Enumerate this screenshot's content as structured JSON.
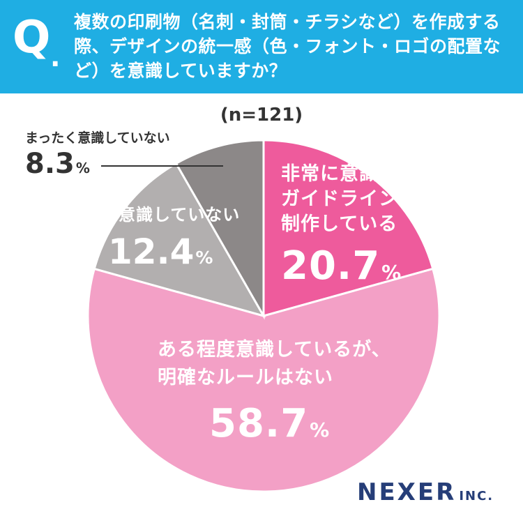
{
  "header": {
    "q_mark": "Q",
    "q_dot": ".",
    "question": "複数の印刷物（名刺・封筒・チラシなど）を作成する際、デザインの統一感（色・フォント・ロゴの配置など）を意識していますか？",
    "background": "#1faee3"
  },
  "sample_size": "(n=121)",
  "chart_data": {
    "type": "pie",
    "start_angle_deg": 0,
    "direction": "clockwise",
    "slices": [
      {
        "label": "非常に意識しており、ガイドラインに沿って制作している",
        "value": 20.7,
        "value_text": "20.7",
        "color": "#ee5b9c"
      },
      {
        "label": "ある程度意識しているが、明確なルールはない",
        "value": 58.7,
        "value_text": "58.7",
        "color": "#f3a0c6"
      },
      {
        "label": "あまり意識していない",
        "value": 12.4,
        "value_text": "12.4",
        "color": "#b2afaf"
      },
      {
        "label": "まったく意識していない",
        "value": 8.3,
        "value_text": "8.3",
        "color": "#8c8888"
      }
    ],
    "percent_sign": "%"
  },
  "labels": {
    "s1_lines": [
      "非常に意識しており、",
      "ガイドラインに沿って",
      "制作している"
    ],
    "s2_lines": [
      "ある程度意識しているが、",
      "明確なルールはない"
    ],
    "s3_lines": [
      "あまり意識していない"
    ],
    "s4_lines": [
      "まったく意識していない"
    ]
  },
  "logo": {
    "main": "NEXER",
    "sub": "INC.",
    "color": "#263e78"
  }
}
